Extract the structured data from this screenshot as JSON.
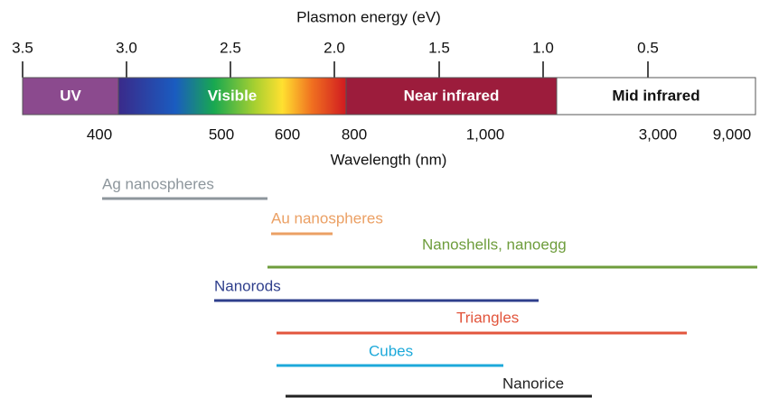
{
  "header": {
    "energy_axis_title": "Plasmon energy (eV)",
    "wavelength_axis_title": "Wavelength (nm)"
  },
  "energy_ticks": [
    "3.5",
    "3.0",
    "2.5",
    "2.0",
    "1.5",
    "1.0",
    "0.5"
  ],
  "wavelength_ticks": [
    "400",
    "500",
    "600",
    "800",
    "1,000",
    "3,000",
    "9,000"
  ],
  "regions": [
    {
      "label": "UV",
      "color": "#8b4a8e"
    },
    {
      "label": "Visible",
      "color": "gradient"
    },
    {
      "label": "Near infrared",
      "color": "#9c1c3c"
    },
    {
      "label": "Mid infrared",
      "color": "#ffffff"
    }
  ],
  "particles": [
    {
      "label": "Ag nanospheres",
      "color": "#8d969c"
    },
    {
      "label": "Au nanospheres",
      "color": "#eba064"
    },
    {
      "label": "Nanoshells, nanoegg",
      "color": "#6e9d3c"
    },
    {
      "label": "Nanorods",
      "color": "#2f3f8c"
    },
    {
      "label": "Triangles",
      "color": "#e2553c"
    },
    {
      "label": "Cubes",
      "color": "#1da9da"
    },
    {
      "label": "Nanorice",
      "color": "#222222"
    }
  ]
}
